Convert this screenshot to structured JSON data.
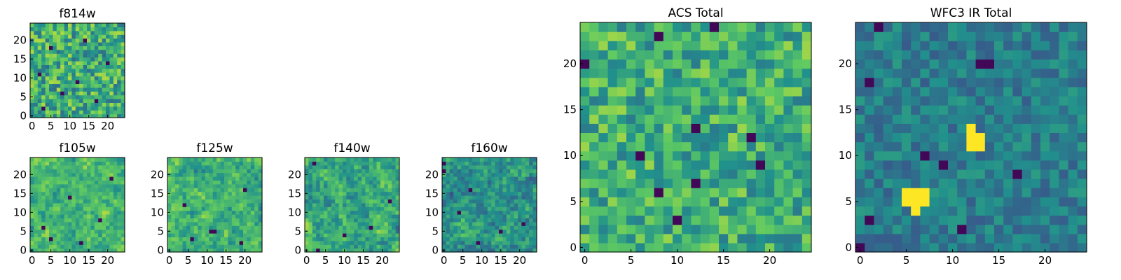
{
  "colors": {
    "colormap": [
      "#440154",
      "#3b528b",
      "#21918c",
      "#5ec962",
      "#fde725"
    ],
    "frame": "#000000",
    "hot_spot": "#fde725"
  },
  "chart_data": [
    {
      "id": "f814w",
      "type": "heatmap",
      "title": "f814w",
      "grid_size": 25,
      "xlim": [
        0,
        24
      ],
      "ylim": [
        0,
        24
      ],
      "xticks": [
        0,
        5,
        10,
        15,
        20
      ],
      "yticks": [
        0,
        5,
        10,
        15,
        20
      ],
      "seed": 11,
      "base": 0.62,
      "noise": 0.26,
      "smooth": 0,
      "dark_pixels": [
        [
          3,
          2
        ],
        [
          8,
          6
        ],
        [
          12,
          9
        ],
        [
          17,
          4
        ],
        [
          5,
          18
        ],
        [
          20,
          14
        ],
        [
          14,
          20
        ],
        [
          2,
          11
        ]
      ],
      "hot_spots": []
    },
    {
      "id": "f105w",
      "type": "heatmap",
      "title": "f105w",
      "grid_size": 25,
      "xlim": [
        0,
        24
      ],
      "ylim": [
        0,
        24
      ],
      "xticks": [
        0,
        5,
        10,
        15,
        20
      ],
      "yticks": [
        0,
        5,
        10,
        15,
        20
      ],
      "seed": 23,
      "base": 0.66,
      "noise": 0.25,
      "smooth": 1,
      "dark_pixels": [
        [
          5,
          3
        ],
        [
          13,
          2
        ],
        [
          18,
          8
        ],
        [
          21,
          19
        ],
        [
          10,
          14
        ],
        [
          3,
          6
        ]
      ],
      "hot_spots": []
    },
    {
      "id": "f125w",
      "type": "heatmap",
      "title": "f125w",
      "grid_size": 25,
      "xlim": [
        0,
        24
      ],
      "ylim": [
        0,
        24
      ],
      "xticks": [
        0,
        5,
        10,
        15,
        20
      ],
      "yticks": [
        0,
        5,
        10,
        15,
        20
      ],
      "seed": 37,
      "base": 0.64,
      "noise": 0.26,
      "smooth": 1,
      "dark_pixels": [
        [
          11,
          5
        ],
        [
          12,
          5
        ],
        [
          6,
          3
        ],
        [
          19,
          2
        ],
        [
          20,
          16
        ],
        [
          4,
          12
        ]
      ],
      "hot_spots": []
    },
    {
      "id": "f140w",
      "type": "heatmap",
      "title": "f140w",
      "grid_size": 25,
      "xlim": [
        0,
        24
      ],
      "ylim": [
        0,
        24
      ],
      "xticks": [
        0,
        5,
        10,
        15,
        20
      ],
      "yticks": [
        0,
        5,
        10,
        15,
        20
      ],
      "seed": 51,
      "base": 0.6,
      "noise": 0.28,
      "smooth": 1,
      "dark_pixels": [
        [
          3,
          0
        ],
        [
          2,
          23
        ],
        [
          10,
          4
        ],
        [
          17,
          6
        ],
        [
          22,
          13
        ]
      ],
      "hot_spots": []
    },
    {
      "id": "f160w",
      "type": "heatmap",
      "title": "f160w",
      "grid_size": 25,
      "xlim": [
        0,
        24
      ],
      "ylim": [
        0,
        24
      ],
      "xticks": [
        0,
        5,
        10,
        15,
        20
      ],
      "yticks": [
        0,
        5,
        10,
        15,
        20
      ],
      "seed": 67,
      "base": 0.52,
      "noise": 0.28,
      "smooth": 1,
      "dark_pixels": [
        [
          0,
          23
        ],
        [
          0,
          21
        ],
        [
          4,
          10
        ],
        [
          9,
          2
        ],
        [
          15,
          5
        ],
        [
          21,
          7
        ],
        [
          7,
          16
        ]
      ],
      "hot_spots": []
    },
    {
      "id": "acs-total",
      "type": "heatmap",
      "title": "ACS Total",
      "grid_size": 25,
      "xlim": [
        0,
        24
      ],
      "ylim": [
        0,
        24
      ],
      "xticks": [
        0,
        5,
        10,
        15,
        20
      ],
      "yticks": [
        0,
        5,
        10,
        15,
        20
      ],
      "seed": 83,
      "base": 0.63,
      "noise": 0.22,
      "smooth": 0,
      "dark_pixels": [
        [
          8,
          23
        ],
        [
          14,
          24
        ],
        [
          0,
          20
        ],
        [
          6,
          10
        ],
        [
          12,
          13
        ],
        [
          18,
          12
        ],
        [
          19,
          9
        ],
        [
          8,
          6
        ],
        [
          12,
          7
        ],
        [
          10,
          3
        ]
      ],
      "hot_spots": []
    },
    {
      "id": "wfc3-ir-total",
      "type": "heatmap",
      "title": "WFC3 IR Total",
      "grid_size": 25,
      "xlim": [
        0,
        24
      ],
      "ylim": [
        0,
        24
      ],
      "xticks": [
        0,
        5,
        10,
        15,
        20
      ],
      "yticks": [
        0,
        5,
        10,
        15,
        20
      ],
      "seed": 97,
      "base": 0.42,
      "noise": 0.13,
      "smooth": 0,
      "dark_pixels": [
        [
          2,
          24
        ],
        [
          13,
          20
        ],
        [
          14,
          20
        ],
        [
          1,
          18
        ],
        [
          7,
          10
        ],
        [
          9,
          9
        ],
        [
          17,
          8
        ],
        [
          11,
          2
        ],
        [
          0,
          0
        ],
        [
          1,
          3
        ]
      ],
      "hot_spots": [
        [
          5,
          6
        ],
        [
          6,
          6
        ],
        [
          7,
          6
        ],
        [
          5,
          5
        ],
        [
          6,
          5
        ],
        [
          7,
          5
        ],
        [
          6,
          4
        ],
        [
          12,
          13
        ],
        [
          12,
          12
        ],
        [
          13,
          12
        ],
        [
          12,
          11
        ],
        [
          13,
          11
        ]
      ]
    }
  ]
}
